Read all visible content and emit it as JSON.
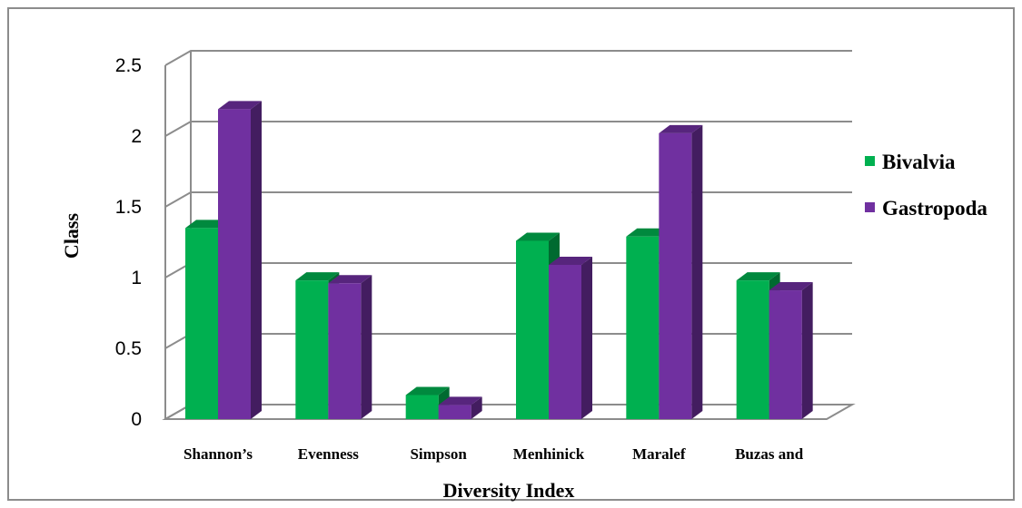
{
  "chart_data": {
    "type": "bar",
    "title": "",
    "xlabel": "Diversity Index",
    "ylabel": "Class",
    "categories": [
      "Shannon’s",
      "Evenness",
      "Simpson",
      "Menhinick",
      "Maralef",
      "Buzas and"
    ],
    "series": [
      {
        "name": "Bivalvia",
        "values": [
          1.35,
          0.98,
          0.17,
          1.26,
          1.29,
          0.98
        ]
      },
      {
        "name": "Gastropoda",
        "values": [
          2.19,
          0.96,
          0.1,
          1.09,
          2.02,
          0.91
        ]
      }
    ],
    "ylim": [
      0,
      2.5
    ],
    "yticks": [
      "0",
      "0.5",
      "1",
      "1.5",
      "2",
      "2.5"
    ],
    "grid": true,
    "legend": "right",
    "three_d": true,
    "colors": {
      "Bivalvia": "#00b050",
      "Gastropoda": "#7030a0"
    }
  }
}
